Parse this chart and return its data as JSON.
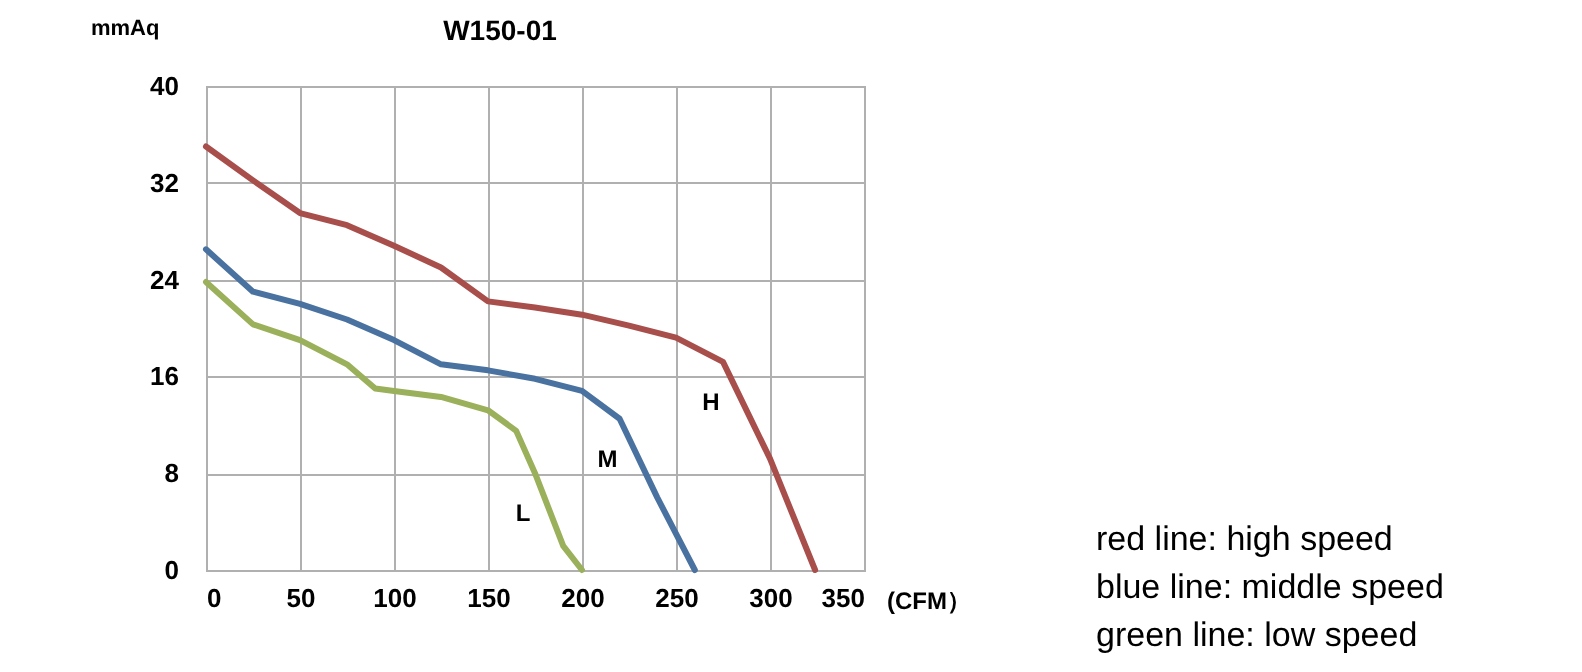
{
  "chart_data": {
    "type": "line",
    "title": "W150-01",
    "xlabel": "(CFM）",
    "ylabel": "mmAq",
    "xlim": [
      0,
      350
    ],
    "xticks": [
      0,
      50,
      100,
      150,
      200,
      250,
      300,
      350
    ],
    "ylim": [
      0,
      40
    ],
    "yticks": [
      0,
      8,
      16,
      24,
      32,
      40
    ],
    "grid": true,
    "marker": "none",
    "line_style": "solid",
    "series": [
      {
        "name": "H",
        "color": "#a84f4c",
        "x": [
          0,
          25,
          50,
          75,
          100,
          125,
          150,
          175,
          200,
          225,
          250,
          275,
          300,
          324
        ],
        "values": [
          35,
          32.2,
          29.5,
          28.5,
          26.8,
          25,
          22.2,
          21.7,
          21.1,
          20.2,
          19.2,
          17.2,
          9.2,
          0
        ]
      },
      {
        "name": "M",
        "color": "#4a72a0",
        "x": [
          0,
          25,
          50,
          75,
          100,
          125,
          150,
          175,
          200,
          220,
          240,
          260
        ],
        "values": [
          26.5,
          23,
          22,
          20.7,
          19,
          17,
          16.5,
          15.8,
          14.8,
          12.5,
          6,
          0
        ]
      },
      {
        "name": "L",
        "color": "#9bb05a",
        "x": [
          0,
          25,
          50,
          75,
          90,
          100,
          125,
          150,
          165,
          175,
          190,
          200
        ],
        "values": [
          23.8,
          20.3,
          19,
          17,
          15,
          14.8,
          14.3,
          13.2,
          11.5,
          8,
          2,
          0
        ]
      }
    ],
    "annotations": [
      "red line: high speed",
      "blue line: middle speed",
      "green line: low speed"
    ]
  }
}
